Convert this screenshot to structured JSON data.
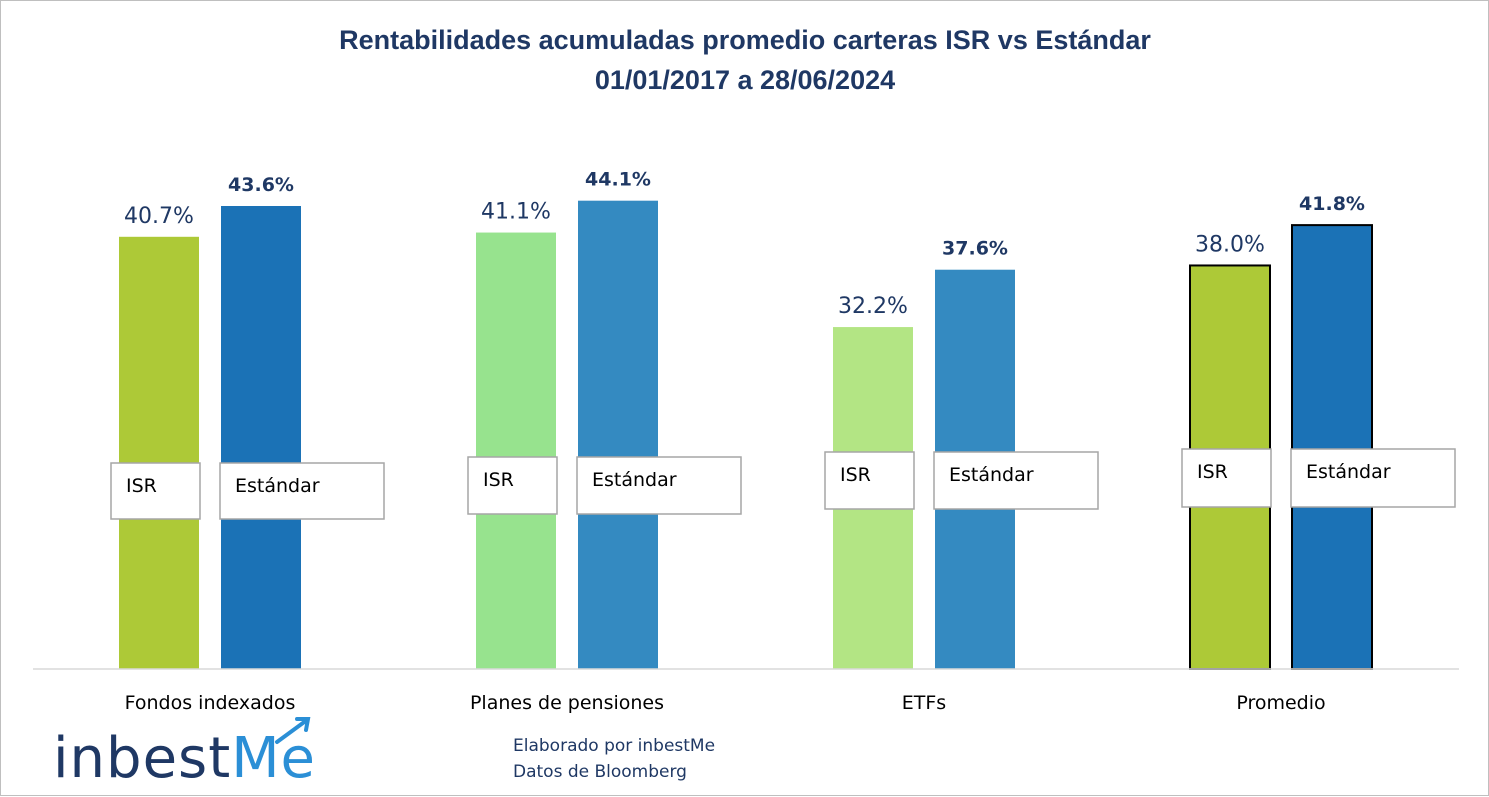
{
  "chart_data": {
    "type": "bar",
    "title": "Rentabilidades acumuladas promedio carteras ISR vs Estándar",
    "subtitle": "01/01/2017 a 28/06/2024",
    "categories": [
      "Fondos indexados",
      "Planes de pensiones",
      "ETFs",
      "Promedio"
    ],
    "series": [
      {
        "name": "ISR",
        "values": [
          40.7,
          41.1,
          32.2,
          38.0
        ],
        "labels": [
          "40.7%",
          "41.1%",
          "32.2%",
          "38.0%"
        ],
        "colors": [
          "#adc937",
          "#97e38e",
          "#b3e584",
          "#adc937"
        ]
      },
      {
        "name": "Estándar",
        "values": [
          43.6,
          44.1,
          37.6,
          41.8
        ],
        "labels": [
          "43.6%",
          "44.1%",
          "37.6%",
          "41.8%"
        ],
        "colors": [
          "#1b72b6",
          "#348ac1",
          "#348ac1",
          "#1b72b6"
        ]
      }
    ],
    "grid": false,
    "legend": "in-bar label boxes"
  },
  "footer": {
    "line1": "Elaborado por inbestMe",
    "line2": "Datos de Bloomberg"
  },
  "logo": {
    "text_main": "inbest",
    "text_accent": "Me",
    "text_color": "#1f3864",
    "accent_color": "#2b8fd6"
  }
}
